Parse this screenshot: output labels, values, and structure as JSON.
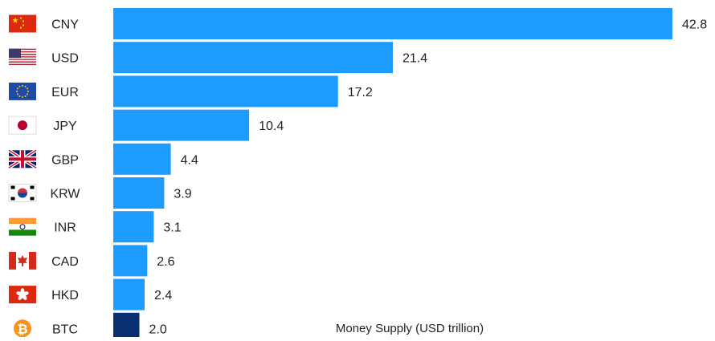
{
  "chart_data": {
    "type": "bar",
    "orientation": "horizontal",
    "categories": [
      "CNY",
      "USD",
      "EUR",
      "JPY",
      "GBP",
      "KRW",
      "INR",
      "CAD",
      "HKD",
      "BTC"
    ],
    "values": [
      42.8,
      21.4,
      17.2,
      10.4,
      4.4,
      3.9,
      3.1,
      2.6,
      2.4,
      2.0
    ],
    "value_labels": [
      "42.8",
      "21.4",
      "17.2",
      "10.4",
      "4.4",
      "3.9",
      "3.1",
      "2.6",
      "2.4",
      "2.0"
    ],
    "flag_icons": [
      "china-flag-icon",
      "usa-flag-icon",
      "eu-flag-icon",
      "japan-flag-icon",
      "uk-flag-icon",
      "south-korea-flag-icon",
      "india-flag-icon",
      "canada-flag-icon",
      "hong-kong-flag-icon",
      "bitcoin-icon"
    ],
    "highlight_category": "BTC",
    "xlabel": "Money Supply (USD trillion)",
    "xlim": [
      0,
      42.8
    ],
    "grid": false,
    "colors": {
      "bar": "#1e9bff",
      "highlight": "#0a2f73",
      "text": "#222222"
    }
  }
}
